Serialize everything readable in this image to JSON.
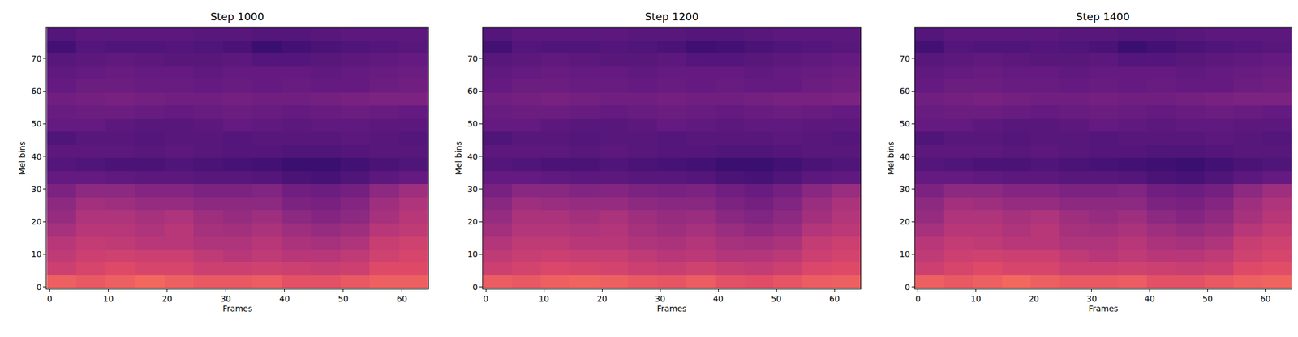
{
  "chart_data": [
    {
      "type": "heatmap",
      "title": "Step 1000",
      "x_label": "Frames",
      "y_label": "Mel bins",
      "x": [
        2,
        7,
        12,
        17,
        22,
        27,
        32,
        37,
        42,
        47,
        52,
        57,
        62
      ],
      "y": [
        1.5,
        5.5,
        9.5,
        13.5,
        17.5,
        21.5,
        25.5,
        29.5,
        33.5,
        37.5,
        41.5,
        45.5,
        49.5,
        53.5,
        57.5,
        61.5,
        65.5,
        69.5,
        73.5,
        77.5
      ],
      "z": [
        [
          0.66,
          0.64,
          0.66,
          0.68,
          0.66,
          0.64,
          0.64,
          0.65,
          0.62,
          0.62,
          0.64,
          0.66,
          0.66
        ],
        [
          0.55,
          0.58,
          0.6,
          0.58,
          0.58,
          0.55,
          0.55,
          0.56,
          0.55,
          0.54,
          0.55,
          0.6,
          0.6
        ],
        [
          0.52,
          0.55,
          0.56,
          0.55,
          0.55,
          0.52,
          0.5,
          0.52,
          0.5,
          0.5,
          0.52,
          0.56,
          0.58
        ],
        [
          0.5,
          0.53,
          0.52,
          0.5,
          0.5,
          0.48,
          0.48,
          0.5,
          0.47,
          0.46,
          0.48,
          0.54,
          0.56
        ],
        [
          0.46,
          0.5,
          0.5,
          0.48,
          0.5,
          0.46,
          0.45,
          0.47,
          0.44,
          0.42,
          0.44,
          0.5,
          0.52
        ],
        [
          0.42,
          0.48,
          0.48,
          0.46,
          0.48,
          0.44,
          0.42,
          0.44,
          0.4,
          0.38,
          0.4,
          0.46,
          0.5
        ],
        [
          0.4,
          0.45,
          0.44,
          0.42,
          0.42,
          0.4,
          0.4,
          0.4,
          0.36,
          0.35,
          0.38,
          0.44,
          0.48
        ],
        [
          0.36,
          0.4,
          0.4,
          0.38,
          0.38,
          0.36,
          0.36,
          0.37,
          0.33,
          0.32,
          0.34,
          0.4,
          0.44
        ],
        [
          0.3,
          0.3,
          0.29,
          0.28,
          0.28,
          0.27,
          0.27,
          0.26,
          0.24,
          0.23,
          0.25,
          0.28,
          0.3
        ],
        [
          0.26,
          0.25,
          0.24,
          0.24,
          0.25,
          0.24,
          0.23,
          0.22,
          0.2,
          0.2,
          0.22,
          0.24,
          0.25
        ],
        [
          0.28,
          0.28,
          0.28,
          0.27,
          0.28,
          0.27,
          0.26,
          0.26,
          0.25,
          0.25,
          0.26,
          0.27,
          0.27
        ],
        [
          0.25,
          0.27,
          0.27,
          0.26,
          0.27,
          0.27,
          0.26,
          0.27,
          0.27,
          0.27,
          0.28,
          0.27,
          0.26
        ],
        [
          0.3,
          0.3,
          0.28,
          0.27,
          0.27,
          0.28,
          0.3,
          0.29,
          0.28,
          0.29,
          0.29,
          0.28,
          0.28
        ],
        [
          0.31,
          0.32,
          0.32,
          0.31,
          0.3,
          0.31,
          0.32,
          0.31,
          0.3,
          0.31,
          0.32,
          0.31,
          0.3
        ],
        [
          0.33,
          0.34,
          0.35,
          0.34,
          0.33,
          0.33,
          0.34,
          0.33,
          0.33,
          0.34,
          0.35,
          0.36,
          0.36
        ],
        [
          0.3,
          0.32,
          0.32,
          0.31,
          0.31,
          0.3,
          0.31,
          0.3,
          0.31,
          0.3,
          0.3,
          0.32,
          0.33
        ],
        [
          0.29,
          0.3,
          0.31,
          0.3,
          0.3,
          0.29,
          0.3,
          0.3,
          0.3,
          0.29,
          0.3,
          0.31,
          0.32
        ],
        [
          0.27,
          0.28,
          0.29,
          0.28,
          0.27,
          0.27,
          0.28,
          0.26,
          0.26,
          0.27,
          0.28,
          0.29,
          0.3
        ],
        [
          0.22,
          0.26,
          0.25,
          0.25,
          0.26,
          0.25,
          0.24,
          0.2,
          0.22,
          0.24,
          0.25,
          0.26,
          0.27
        ],
        [
          0.26,
          0.28,
          0.28,
          0.28,
          0.28,
          0.27,
          0.27,
          0.26,
          0.26,
          0.27,
          0.28,
          0.28,
          0.28
        ]
      ],
      "zlim": [
        0,
        1
      ],
      "xlim": [
        -0.5,
        64.5
      ],
      "xticks": [
        0,
        10,
        20,
        30,
        40,
        50,
        60
      ],
      "ylim": [
        -0.5,
        79.5
      ],
      "yticks": [
        0,
        10,
        20,
        30,
        40,
        50,
        60,
        70
      ]
    },
    {
      "type": "heatmap",
      "title": "Step 1200",
      "x_label": "Frames",
      "y_label": "Mel bins",
      "x": [
        2,
        7,
        12,
        17,
        22,
        27,
        32,
        37,
        42,
        47,
        52,
        57,
        62
      ],
      "y": [
        1.5,
        5.5,
        9.5,
        13.5,
        17.5,
        21.5,
        25.5,
        29.5,
        33.5,
        37.5,
        41.5,
        45.5,
        49.5,
        53.5,
        57.5,
        61.5,
        65.5,
        69.5,
        73.5,
        77.5
      ],
      "z": [
        [
          0.65,
          0.64,
          0.66,
          0.67,
          0.66,
          0.64,
          0.63,
          0.65,
          0.62,
          0.61,
          0.63,
          0.65,
          0.66
        ],
        [
          0.55,
          0.57,
          0.59,
          0.58,
          0.57,
          0.55,
          0.54,
          0.56,
          0.54,
          0.53,
          0.55,
          0.59,
          0.6
        ],
        [
          0.52,
          0.54,
          0.55,
          0.54,
          0.54,
          0.52,
          0.5,
          0.51,
          0.49,
          0.49,
          0.51,
          0.55,
          0.57
        ],
        [
          0.49,
          0.52,
          0.52,
          0.5,
          0.5,
          0.48,
          0.47,
          0.49,
          0.46,
          0.45,
          0.47,
          0.53,
          0.55
        ],
        [
          0.45,
          0.49,
          0.49,
          0.48,
          0.49,
          0.46,
          0.44,
          0.46,
          0.43,
          0.41,
          0.43,
          0.49,
          0.51
        ],
        [
          0.42,
          0.47,
          0.47,
          0.45,
          0.47,
          0.44,
          0.42,
          0.43,
          0.39,
          0.37,
          0.4,
          0.45,
          0.49
        ],
        [
          0.39,
          0.44,
          0.43,
          0.42,
          0.42,
          0.4,
          0.39,
          0.39,
          0.36,
          0.34,
          0.37,
          0.43,
          0.47
        ],
        [
          0.35,
          0.39,
          0.39,
          0.37,
          0.38,
          0.36,
          0.35,
          0.36,
          0.33,
          0.31,
          0.34,
          0.39,
          0.43
        ],
        [
          0.3,
          0.3,
          0.29,
          0.28,
          0.28,
          0.27,
          0.27,
          0.26,
          0.24,
          0.23,
          0.25,
          0.28,
          0.29
        ],
        [
          0.26,
          0.25,
          0.24,
          0.24,
          0.25,
          0.24,
          0.23,
          0.22,
          0.2,
          0.2,
          0.22,
          0.24,
          0.25
        ],
        [
          0.28,
          0.28,
          0.28,
          0.27,
          0.28,
          0.27,
          0.26,
          0.26,
          0.25,
          0.25,
          0.26,
          0.27,
          0.27
        ],
        [
          0.25,
          0.27,
          0.27,
          0.26,
          0.27,
          0.27,
          0.26,
          0.27,
          0.27,
          0.27,
          0.28,
          0.27,
          0.26
        ],
        [
          0.3,
          0.3,
          0.28,
          0.27,
          0.27,
          0.28,
          0.3,
          0.29,
          0.28,
          0.29,
          0.29,
          0.28,
          0.28
        ],
        [
          0.31,
          0.32,
          0.32,
          0.31,
          0.3,
          0.31,
          0.32,
          0.31,
          0.3,
          0.31,
          0.32,
          0.31,
          0.3
        ],
        [
          0.33,
          0.34,
          0.35,
          0.34,
          0.33,
          0.33,
          0.34,
          0.33,
          0.33,
          0.34,
          0.35,
          0.35,
          0.36
        ],
        [
          0.3,
          0.32,
          0.32,
          0.31,
          0.31,
          0.3,
          0.31,
          0.3,
          0.31,
          0.3,
          0.3,
          0.32,
          0.33
        ],
        [
          0.29,
          0.3,
          0.31,
          0.3,
          0.3,
          0.29,
          0.3,
          0.3,
          0.3,
          0.29,
          0.3,
          0.31,
          0.32
        ],
        [
          0.27,
          0.28,
          0.29,
          0.28,
          0.27,
          0.27,
          0.28,
          0.26,
          0.26,
          0.27,
          0.28,
          0.29,
          0.3
        ],
        [
          0.22,
          0.26,
          0.25,
          0.25,
          0.26,
          0.25,
          0.24,
          0.21,
          0.22,
          0.24,
          0.25,
          0.26,
          0.27
        ],
        [
          0.26,
          0.28,
          0.28,
          0.28,
          0.28,
          0.27,
          0.27,
          0.26,
          0.26,
          0.27,
          0.28,
          0.28,
          0.28
        ]
      ],
      "zlim": [
        0,
        1
      ],
      "xlim": [
        -0.5,
        64.5
      ],
      "xticks": [
        0,
        10,
        20,
        30,
        40,
        50,
        60
      ],
      "ylim": [
        -0.5,
        79.5
      ],
      "yticks": [
        0,
        10,
        20,
        30,
        40,
        50,
        60,
        70
      ]
    },
    {
      "type": "heatmap",
      "title": "Step 1400",
      "x_label": "Frames",
      "y_label": "Mel bins",
      "x": [
        2,
        7,
        12,
        17,
        22,
        27,
        32,
        37,
        42,
        47,
        52,
        57,
        62
      ],
      "y": [
        1.5,
        5.5,
        9.5,
        13.5,
        17.5,
        21.5,
        25.5,
        29.5,
        33.5,
        37.5,
        41.5,
        45.5,
        49.5,
        53.5,
        57.5,
        61.5,
        65.5,
        69.5,
        73.5,
        77.5
      ],
      "z": [
        [
          0.66,
          0.64,
          0.66,
          0.68,
          0.66,
          0.64,
          0.64,
          0.65,
          0.62,
          0.62,
          0.64,
          0.66,
          0.67
        ],
        [
          0.55,
          0.58,
          0.6,
          0.58,
          0.58,
          0.55,
          0.55,
          0.56,
          0.55,
          0.54,
          0.55,
          0.6,
          0.61
        ],
        [
          0.52,
          0.55,
          0.56,
          0.55,
          0.55,
          0.52,
          0.5,
          0.52,
          0.5,
          0.5,
          0.52,
          0.56,
          0.58
        ],
        [
          0.5,
          0.53,
          0.52,
          0.5,
          0.5,
          0.48,
          0.48,
          0.5,
          0.47,
          0.46,
          0.48,
          0.54,
          0.56
        ],
        [
          0.46,
          0.5,
          0.5,
          0.48,
          0.5,
          0.46,
          0.45,
          0.47,
          0.44,
          0.42,
          0.44,
          0.5,
          0.53
        ],
        [
          0.42,
          0.48,
          0.48,
          0.46,
          0.48,
          0.44,
          0.42,
          0.44,
          0.4,
          0.38,
          0.41,
          0.46,
          0.5
        ],
        [
          0.4,
          0.45,
          0.44,
          0.42,
          0.42,
          0.4,
          0.4,
          0.4,
          0.36,
          0.35,
          0.38,
          0.44,
          0.48
        ],
        [
          0.36,
          0.4,
          0.4,
          0.38,
          0.38,
          0.36,
          0.36,
          0.37,
          0.33,
          0.32,
          0.34,
          0.4,
          0.44
        ],
        [
          0.3,
          0.3,
          0.29,
          0.28,
          0.28,
          0.27,
          0.27,
          0.26,
          0.24,
          0.23,
          0.25,
          0.28,
          0.3
        ],
        [
          0.26,
          0.25,
          0.24,
          0.24,
          0.25,
          0.24,
          0.23,
          0.22,
          0.21,
          0.2,
          0.22,
          0.24,
          0.25
        ],
        [
          0.28,
          0.28,
          0.28,
          0.27,
          0.28,
          0.27,
          0.26,
          0.26,
          0.25,
          0.25,
          0.26,
          0.27,
          0.27
        ],
        [
          0.25,
          0.27,
          0.27,
          0.26,
          0.27,
          0.27,
          0.26,
          0.27,
          0.27,
          0.27,
          0.28,
          0.27,
          0.26
        ],
        [
          0.3,
          0.3,
          0.28,
          0.27,
          0.27,
          0.28,
          0.3,
          0.29,
          0.28,
          0.29,
          0.29,
          0.28,
          0.28
        ],
        [
          0.31,
          0.32,
          0.32,
          0.31,
          0.3,
          0.31,
          0.32,
          0.31,
          0.3,
          0.31,
          0.32,
          0.31,
          0.3
        ],
        [
          0.33,
          0.34,
          0.35,
          0.34,
          0.33,
          0.33,
          0.34,
          0.33,
          0.33,
          0.34,
          0.35,
          0.36,
          0.36
        ],
        [
          0.3,
          0.32,
          0.32,
          0.31,
          0.31,
          0.3,
          0.31,
          0.3,
          0.31,
          0.3,
          0.3,
          0.32,
          0.33
        ],
        [
          0.29,
          0.3,
          0.31,
          0.3,
          0.3,
          0.29,
          0.3,
          0.3,
          0.3,
          0.29,
          0.3,
          0.31,
          0.32
        ],
        [
          0.27,
          0.28,
          0.29,
          0.28,
          0.27,
          0.27,
          0.28,
          0.26,
          0.26,
          0.27,
          0.28,
          0.29,
          0.3
        ],
        [
          0.22,
          0.26,
          0.25,
          0.25,
          0.26,
          0.25,
          0.24,
          0.2,
          0.22,
          0.24,
          0.25,
          0.26,
          0.27
        ],
        [
          0.26,
          0.28,
          0.28,
          0.28,
          0.28,
          0.27,
          0.27,
          0.26,
          0.26,
          0.27,
          0.28,
          0.28,
          0.28
        ]
      ],
      "zlim": [
        0,
        1
      ],
      "xlim": [
        -0.5,
        64.5
      ],
      "xticks": [
        0,
        10,
        20,
        30,
        40,
        50,
        60
      ],
      "ylim": [
        -0.5,
        79.5
      ],
      "yticks": [
        0,
        10,
        20,
        30,
        40,
        50,
        60,
        70
      ]
    }
  ]
}
